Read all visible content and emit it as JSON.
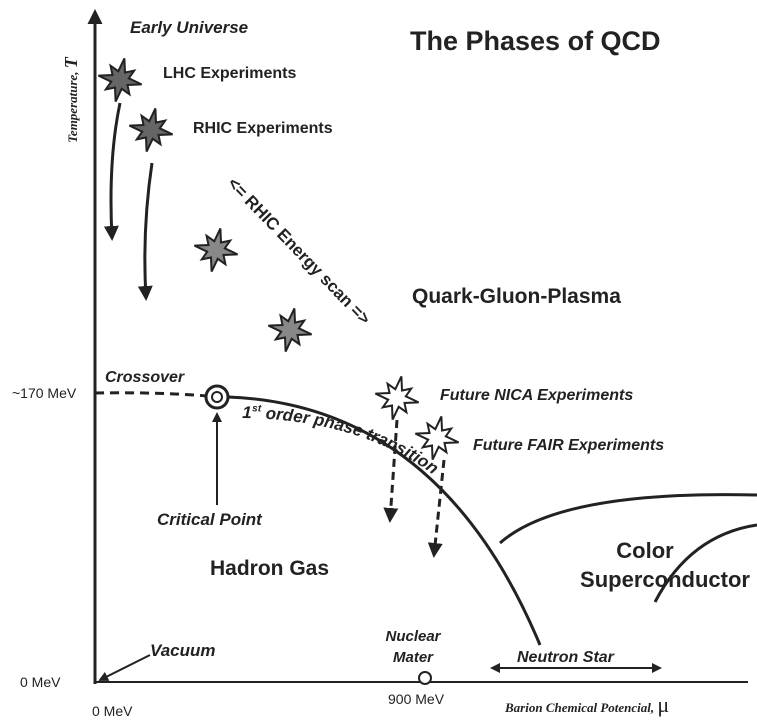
{
  "title": "The Phases of QCD",
  "axes": {
    "y_label": "Temperature,",
    "y_symbol": "T",
    "x_label": "Barion Chemical Potencial,",
    "x_symbol": "μ",
    "y_ticks": [
      "~170 MeV",
      "0 MeV"
    ],
    "x_ticks": [
      "0 MeV",
      "900 MeV"
    ]
  },
  "labels": {
    "early_universe": "Early Universe",
    "lhc": "LHC Experiments",
    "rhic": "RHIC Experiments",
    "energy_scan": "<= RHIC Energy scan =>",
    "qgp": "Quark-Gluon-Plasma",
    "crossover": "Crossover",
    "nica": "Future NICA Experiments",
    "fair": "Future FAIR Experiments",
    "phase_transition": {
      "number": "1",
      "suffix": "st",
      "text": " order phase transition"
    },
    "critical_point": "Critical Point",
    "hadron_gas": "Hadron Gas",
    "color_superconductor": [
      "Color",
      "Superconductor"
    ],
    "vacuum": "Vacuum",
    "nuclear_matter": [
      "Nuclear",
      "Mater"
    ],
    "neutron_star": "Neutron Star"
  }
}
